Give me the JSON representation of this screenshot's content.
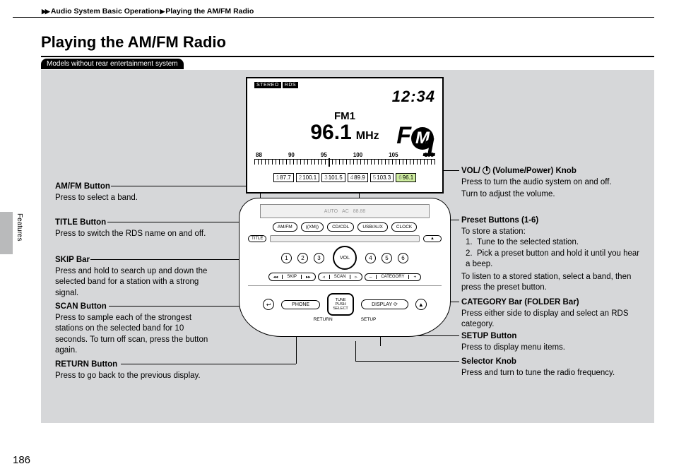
{
  "breadcrumb": {
    "a": "Audio System Basic Operation",
    "b": "Playing the AM/FM Radio"
  },
  "title": "Playing the AM/FM Radio",
  "tag": "Models without rear entertainment system",
  "side_label": "Features",
  "page_number": "186",
  "lcd": {
    "clock": "12:34",
    "badges": {
      "stereo": "STEREO",
      "rds": "RDS"
    },
    "band": "FM1",
    "frequency": "96.1",
    "unit": "MHz",
    "logo_f": "F",
    "logo_m": "M",
    "logo_1": "1",
    "dial_nums": [
      "88",
      "90",
      "95",
      "100",
      "105",
      "108"
    ],
    "dial_marker_pct": 41,
    "presets": [
      {
        "n": "1",
        "v": "87.7",
        "on": false
      },
      {
        "n": "2",
        "v": "100.1",
        "on": false
      },
      {
        "n": "3",
        "v": "101.5",
        "on": false
      },
      {
        "n": "4",
        "v": "89.9",
        "on": false
      },
      {
        "n": "5",
        "v": "103.3",
        "on": false
      },
      {
        "n": "6",
        "v": "96.1",
        "on": true
      }
    ]
  },
  "console": {
    "mini": [
      "AUTO",
      "AC",
      "88.88"
    ],
    "row1": [
      "AM/FM",
      "((XM))",
      "CD/CDL",
      "USB/AUX",
      "CLOCK"
    ],
    "row2": [
      "TITLE",
      "",
      "",
      "",
      "▲"
    ],
    "numbers": [
      "1",
      "2",
      "3",
      "4",
      "5",
      "6"
    ],
    "vol": "VOL",
    "bars": {
      "skip": {
        "l": "◂◂",
        "mid": "SKIP",
        "r": "▸▸"
      },
      "scan": {
        "l": "◃",
        "mid": "SCAN",
        "r": "▹"
      },
      "cat": {
        "l": "–",
        "mid": "CATEGORY",
        "r": "+"
      }
    },
    "phone": "PHONE",
    "display": "DISPLAY ⟳",
    "return_icon": "↩",
    "return": "RETURN",
    "tune": "TUNE\nPUSH\nSELECT",
    "setup": "SETUP",
    "eject": "▲"
  },
  "callouts": {
    "amfm": {
      "t": "AM/FM Button",
      "d": "Press to select a band."
    },
    "title_btn": {
      "t": "TITLE Button",
      "d": "Press to switch the RDS name on and off."
    },
    "skip": {
      "t": "SKIP Bar",
      "d": "Press and hold to search up and down the selected band for a station with a strong signal."
    },
    "scan": {
      "t": "SCAN Button",
      "d": "Press to sample each of the strongest stations on the selected band for 10 seconds. To turn off scan, press the button again."
    },
    "return": {
      "t": "RETURN Button",
      "d": "Press to go back to the previous display."
    },
    "vol": {
      "t1": "VOL/ ",
      "t2": " (Volume/Power) Knob",
      "d": "Press to turn the audio system on and off.",
      "d2": "Turn to adjust the volume."
    },
    "preset": {
      "t": "Preset Buttons (1-6)",
      "intro": "To store a station:",
      "li1": "Tune to the selected station.",
      "li2": "Pick a preset button and hold it until you hear a beep.",
      "outro": "To listen to a stored station, select a band, then press the preset button."
    },
    "category": {
      "t": "CATEGORY Bar (FOLDER Bar)",
      "d": "Press either side to display and select an RDS category."
    },
    "setup": {
      "t": "SETUP Button",
      "d": "Press to display menu items."
    },
    "selector": {
      "t": "Selector Knob",
      "d": "Press and turn to tune the radio frequency."
    }
  }
}
